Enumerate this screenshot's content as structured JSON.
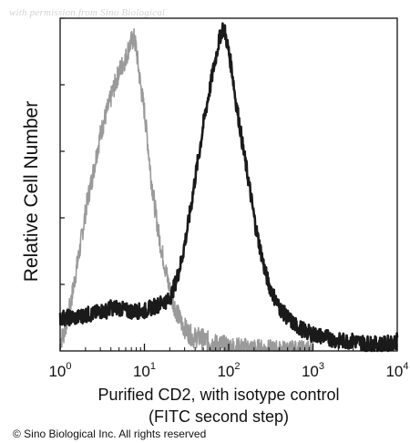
{
  "watermark": "with permission from Sino Biological",
  "copyright": "© Sino Biological Inc. All rights reserved",
  "chart_data": {
    "type": "line",
    "title": "",
    "xlabel_line1": "Purified CD2, with isotype control",
    "xlabel_line2": "(FITC second step)",
    "ylabel": "Relative Cell Number",
    "x_scale": "log",
    "xlim": [
      1,
      10000
    ],
    "ylim": [
      0,
      100
    ],
    "grid": false,
    "xticks": [
      {
        "value": 1,
        "base": "10",
        "exp": "0"
      },
      {
        "value": 10,
        "base": "10",
        "exp": "1"
      },
      {
        "value": 100,
        "base": "10",
        "exp": "2"
      },
      {
        "value": 1000,
        "base": "10",
        "exp": "3"
      },
      {
        "value": 10000,
        "base": "10",
        "exp": "4"
      }
    ],
    "series": [
      {
        "color": "#9a9a9a",
        "points": [
          [
            1.0,
            3
          ],
          [
            1.1,
            5
          ],
          [
            1.2,
            9
          ],
          [
            1.35,
            15
          ],
          [
            1.5,
            22
          ],
          [
            1.7,
            30
          ],
          [
            1.9,
            38
          ],
          [
            2.1,
            45
          ],
          [
            2.4,
            52
          ],
          [
            2.7,
            59
          ],
          [
            3.0,
            65
          ],
          [
            3.4,
            70
          ],
          [
            3.8,
            74
          ],
          [
            4.2,
            78
          ],
          [
            4.6,
            81
          ],
          [
            5.0,
            84
          ],
          [
            5.5,
            86
          ],
          [
            6.0,
            88
          ],
          [
            6.5,
            91
          ],
          [
            7.0,
            93
          ],
          [
            7.5,
            94
          ],
          [
            8.0,
            91
          ],
          [
            8.5,
            85
          ],
          [
            9.0,
            80
          ],
          [
            10,
            72
          ],
          [
            11,
            62
          ],
          [
            12,
            52
          ],
          [
            13.5,
            42
          ],
          [
            15,
            34
          ],
          [
            17,
            27
          ],
          [
            19,
            21
          ],
          [
            21,
            16
          ],
          [
            24,
            12
          ],
          [
            28,
            8
          ],
          [
            32,
            6
          ],
          [
            38,
            4
          ],
          [
            45,
            4
          ],
          [
            55,
            3
          ],
          [
            70,
            2
          ],
          [
            90,
            1.5
          ],
          [
            120,
            1
          ],
          [
            200,
            0.5
          ],
          [
            400,
            0
          ],
          [
            1000,
            0
          ]
        ]
      },
      {
        "color": "#1a1a1a",
        "points": [
          [
            1.0,
            10
          ],
          [
            1.3,
            10
          ],
          [
            1.6,
            10
          ],
          [
            2.0,
            11
          ],
          [
            2.5,
            11
          ],
          [
            3.0,
            12
          ],
          [
            3.5,
            12
          ],
          [
            4.0,
            13
          ],
          [
            5.0,
            13
          ],
          [
            6.0,
            12
          ],
          [
            7.0,
            12
          ],
          [
            8.0,
            12
          ],
          [
            9.0,
            12
          ],
          [
            10,
            12
          ],
          [
            12,
            13
          ],
          [
            15,
            14
          ],
          [
            17,
            15
          ],
          [
            19,
            15
          ],
          [
            21,
            17
          ],
          [
            23,
            20
          ],
          [
            25,
            23
          ],
          [
            28,
            28
          ],
          [
            32,
            36
          ],
          [
            36,
            44
          ],
          [
            40,
            52
          ],
          [
            45,
            60
          ],
          [
            50,
            68
          ],
          [
            55,
            74
          ],
          [
            60,
            79
          ],
          [
            65,
            84
          ],
          [
            70,
            88
          ],
          [
            75,
            92
          ],
          [
            80,
            95
          ],
          [
            85,
            97
          ],
          [
            90,
            96
          ],
          [
            95,
            93
          ],
          [
            100,
            90
          ],
          [
            110,
            84
          ],
          [
            120,
            76
          ],
          [
            135,
            68
          ],
          [
            150,
            60
          ],
          [
            170,
            52
          ],
          [
            190,
            44
          ],
          [
            210,
            37
          ],
          [
            240,
            30
          ],
          [
            270,
            24
          ],
          [
            300,
            20
          ],
          [
            350,
            16
          ],
          [
            400,
            13
          ],
          [
            500,
            10
          ],
          [
            600,
            8
          ],
          [
            800,
            6
          ],
          [
            1000,
            5
          ],
          [
            1500,
            4
          ],
          [
            2000,
            3
          ],
          [
            3000,
            3
          ],
          [
            5000,
            2
          ],
          [
            7000,
            2
          ],
          [
            10000,
            3
          ]
        ]
      }
    ]
  }
}
